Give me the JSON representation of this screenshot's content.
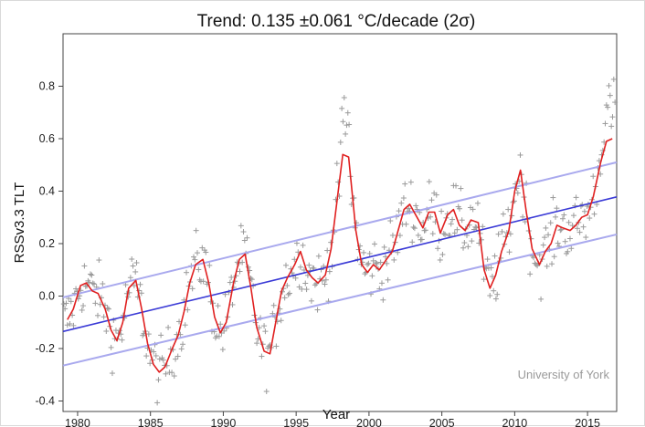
{
  "chart_data": {
    "type": "scatter",
    "title": "Trend: 0.135 ±0.061 °C/decade (2σ)",
    "xlabel": "Year",
    "ylabel": "RSSv3.3 TLT",
    "credit": "University of York",
    "xlim": [
      1979,
      2017
    ],
    "ylim": [
      -0.44,
      1.0
    ],
    "xticks": [
      1980,
      1985,
      1990,
      1995,
      2000,
      2005,
      2010,
      2015
    ],
    "yticks": [
      -0.4,
      -0.2,
      0.0,
      0.2,
      0.4,
      0.6,
      0.8
    ],
    "ytick_labels": [
      "-0.4",
      "-0.2",
      "0.0",
      "0.2",
      "0.4",
      "0.6",
      "0.8"
    ],
    "grid": false,
    "colors": {
      "trend": "#3a3ad6",
      "band": "#a9a9ee",
      "smooth": "#e02020",
      "points": "#9a9a9a"
    },
    "trend_line": {
      "x": [
        1979,
        2017
      ],
      "y": [
        -0.135,
        0.378
      ]
    },
    "upper_bound": {
      "x": [
        1979,
        2017
      ],
      "y": [
        -0.005,
        0.51
      ]
    },
    "lower_bound": {
      "x": [
        1979,
        2017
      ],
      "y": [
        -0.265,
        0.235
      ]
    },
    "smoothed": {
      "x": [
        1979.3,
        1979.7,
        1980.2,
        1980.6,
        1981.0,
        1981.4,
        1981.9,
        1982.3,
        1982.7,
        1983.1,
        1983.5,
        1984.0,
        1984.4,
        1984.8,
        1985.2,
        1985.6,
        1986.0,
        1986.5,
        1986.9,
        1987.3,
        1987.7,
        1988.1,
        1988.6,
        1989.0,
        1989.4,
        1989.8,
        1990.2,
        1990.7,
        1991.1,
        1991.5,
        1991.9,
        1992.3,
        1992.8,
        1993.2,
        1993.6,
        1994.0,
        1994.4,
        1994.9,
        1995.3,
        1995.7,
        1996.1,
        1996.5,
        1997.0,
        1997.4,
        1997.8,
        1998.2,
        1998.6,
        1999.1,
        1999.5,
        1999.9,
        2000.3,
        2000.7,
        2001.2,
        2001.6,
        2002.0,
        2002.4,
        2002.8,
        2003.3,
        2003.7,
        2004.1,
        2004.5,
        2004.9,
        2005.4,
        2005.8,
        2006.2,
        2006.6,
        2007.0,
        2007.5,
        2007.9,
        2008.3,
        2008.7,
        2009.1,
        2009.6,
        2010.0,
        2010.4,
        2010.8,
        2011.2,
        2011.7,
        2012.1,
        2012.5,
        2012.9,
        2013.3,
        2013.8,
        2014.2,
        2014.6,
        2015.0,
        2015.4,
        2015.9,
        2016.3,
        2016.7
      ],
      "y": [
        -0.09,
        -0.05,
        0.04,
        0.05,
        0.02,
        0.01,
        -0.05,
        -0.13,
        -0.17,
        -0.1,
        0.03,
        0.06,
        -0.05,
        -0.18,
        -0.26,
        -0.29,
        -0.27,
        -0.2,
        -0.15,
        -0.06,
        0.05,
        0.12,
        0.14,
        0.05,
        -0.08,
        -0.14,
        -0.1,
        0.05,
        0.14,
        0.16,
        0.03,
        -0.12,
        -0.21,
        -0.22,
        -0.1,
        0.02,
        0.07,
        0.12,
        0.17,
        0.1,
        0.07,
        0.05,
        0.08,
        0.18,
        0.36,
        0.54,
        0.53,
        0.25,
        0.12,
        0.09,
        0.12,
        0.1,
        0.14,
        0.17,
        0.25,
        0.33,
        0.35,
        0.3,
        0.26,
        0.32,
        0.32,
        0.24,
        0.31,
        0.33,
        0.27,
        0.25,
        0.29,
        0.28,
        0.1,
        0.03,
        0.08,
        0.17,
        0.25,
        0.4,
        0.48,
        0.32,
        0.18,
        0.12,
        0.17,
        0.2,
        0.27,
        0.26,
        0.25,
        0.27,
        0.3,
        0.31,
        0.38,
        0.51,
        0.59,
        0.6
      ]
    }
  }
}
